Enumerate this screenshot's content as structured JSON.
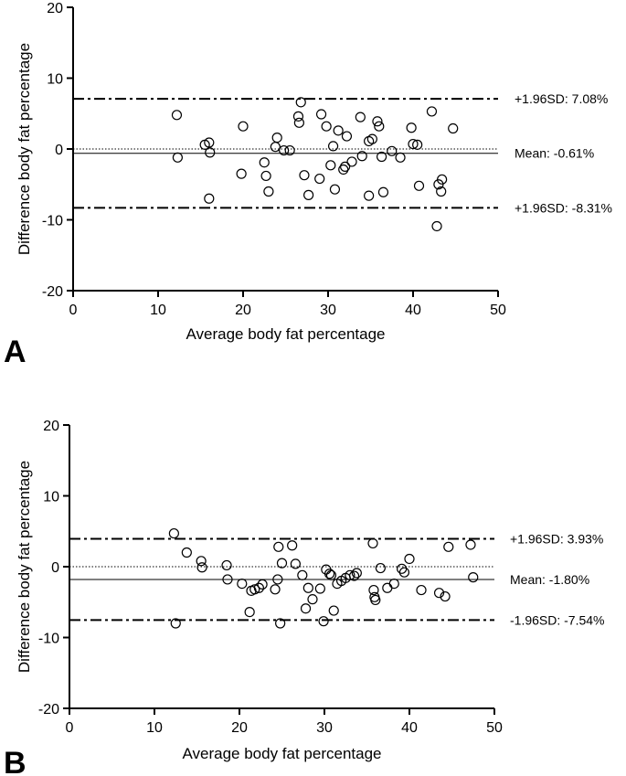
{
  "chart_data": [
    {
      "type": "scatter",
      "panel_label": "A",
      "xlabel": "Average body fat percentage",
      "ylabel": "Difference body fat percentage",
      "xlim": [
        0,
        50
      ],
      "ylim": [
        -20,
        20
      ],
      "xticks": [
        0,
        10,
        20,
        30,
        40,
        50
      ],
      "yticks": [
        -20,
        -10,
        0,
        10,
        20
      ],
      "lines": {
        "upper": 7.08,
        "mean": -0.61,
        "lower": -8.31,
        "zero": 0,
        "upper_label": "+1.96SD: 7.08%",
        "mean_label": "Mean: -0.61%",
        "lower_label": "+1.96SD: -8.31%"
      },
      "points": [
        [
          12.2,
          4.8
        ],
        [
          12.3,
          -1.2
        ],
        [
          15.5,
          0.6
        ],
        [
          16.0,
          0.9
        ],
        [
          16.1,
          -0.5
        ],
        [
          16.0,
          -7.0
        ],
        [
          19.8,
          -3.5
        ],
        [
          20.0,
          3.2
        ],
        [
          22.5,
          -1.9
        ],
        [
          22.7,
          -3.8
        ],
        [
          23.0,
          -6.0
        ],
        [
          23.8,
          0.3
        ],
        [
          24.0,
          1.6
        ],
        [
          24.8,
          -0.2
        ],
        [
          25.5,
          -0.2
        ],
        [
          26.5,
          4.6
        ],
        [
          26.6,
          3.7
        ],
        [
          26.8,
          6.6
        ],
        [
          27.2,
          -3.7
        ],
        [
          27.7,
          -6.5
        ],
        [
          29.0,
          -4.2
        ],
        [
          29.2,
          4.9
        ],
        [
          29.8,
          3.2
        ],
        [
          30.3,
          -2.3
        ],
        [
          30.6,
          0.4
        ],
        [
          30.8,
          -5.7
        ],
        [
          31.2,
          2.6
        ],
        [
          31.8,
          -2.9
        ],
        [
          32.0,
          -2.5
        ],
        [
          32.2,
          1.8
        ],
        [
          32.8,
          -1.8
        ],
        [
          33.8,
          4.5
        ],
        [
          34.0,
          -1.0
        ],
        [
          34.8,
          -6.6
        ],
        [
          34.8,
          1.1
        ],
        [
          35.2,
          1.4
        ],
        [
          35.8,
          3.9
        ],
        [
          36.0,
          3.2
        ],
        [
          36.3,
          -1.1
        ],
        [
          36.5,
          -6.1
        ],
        [
          37.5,
          -0.3
        ],
        [
          38.5,
          -1.2
        ],
        [
          39.8,
          3.0
        ],
        [
          40.0,
          0.7
        ],
        [
          40.5,
          0.6
        ],
        [
          40.7,
          -5.2
        ],
        [
          42.2,
          5.3
        ],
        [
          42.8,
          -10.9
        ],
        [
          43.0,
          -5.0
        ],
        [
          43.3,
          -6.0
        ],
        [
          43.4,
          -4.3
        ],
        [
          44.7,
          2.9
        ]
      ]
    },
    {
      "type": "scatter",
      "panel_label": "B",
      "xlabel": "Average body fat percentage",
      "ylabel": "Difference body fat percentage",
      "xlim": [
        0,
        50
      ],
      "ylim": [
        -20,
        20
      ],
      "xticks": [
        0,
        10,
        20,
        30,
        40,
        50
      ],
      "yticks": [
        -20,
        -10,
        0,
        10,
        20
      ],
      "lines": {
        "upper": 3.93,
        "mean": -1.8,
        "lower": -7.54,
        "zero": 0,
        "upper_label": "+1.96SD: 3.93%",
        "mean_label": "Mean: -1.80%",
        "lower_label": "-1.96SD: -7.54%"
      },
      "points": [
        [
          12.3,
          4.7
        ],
        [
          12.5,
          -8.0
        ],
        [
          13.8,
          2.0
        ],
        [
          15.5,
          0.8
        ],
        [
          15.6,
          -0.1
        ],
        [
          18.5,
          0.2
        ],
        [
          18.6,
          -1.8
        ],
        [
          20.3,
          -2.4
        ],
        [
          21.2,
          -6.4
        ],
        [
          21.4,
          -3.4
        ],
        [
          21.8,
          -3.2
        ],
        [
          22.3,
          -3.0
        ],
        [
          22.7,
          -2.5
        ],
        [
          24.2,
          -3.2
        ],
        [
          24.5,
          -1.8
        ],
        [
          24.6,
          2.8
        ],
        [
          24.8,
          -8.0
        ],
        [
          25.0,
          0.5
        ],
        [
          26.2,
          3.0
        ],
        [
          26.6,
          0.4
        ],
        [
          27.4,
          -1.2
        ],
        [
          27.8,
          -5.9
        ],
        [
          28.1,
          -3.0
        ],
        [
          28.6,
          -4.6
        ],
        [
          29.5,
          -3.1
        ],
        [
          29.9,
          -7.7
        ],
        [
          30.2,
          -0.4
        ],
        [
          30.6,
          -1.0
        ],
        [
          30.8,
          -1.2
        ],
        [
          31.1,
          -6.2
        ],
        [
          31.5,
          -2.4
        ],
        [
          32.0,
          -2.0
        ],
        [
          32.5,
          -1.6
        ],
        [
          33.0,
          -1.2
        ],
        [
          33.5,
          -1.3
        ],
        [
          33.8,
          -0.9
        ],
        [
          35.7,
          3.3
        ],
        [
          35.8,
          -3.3
        ],
        [
          35.9,
          -4.3
        ],
        [
          36.0,
          -4.7
        ],
        [
          36.6,
          -0.2
        ],
        [
          37.4,
          -3.0
        ],
        [
          38.2,
          -2.4
        ],
        [
          39.1,
          -0.3
        ],
        [
          39.4,
          -0.8
        ],
        [
          40.0,
          1.1
        ],
        [
          41.4,
          -3.3
        ],
        [
          43.5,
          -3.7
        ],
        [
          44.2,
          -4.2
        ],
        [
          44.6,
          2.8
        ],
        [
          47.2,
          3.1
        ],
        [
          47.5,
          -1.5
        ]
      ]
    }
  ]
}
